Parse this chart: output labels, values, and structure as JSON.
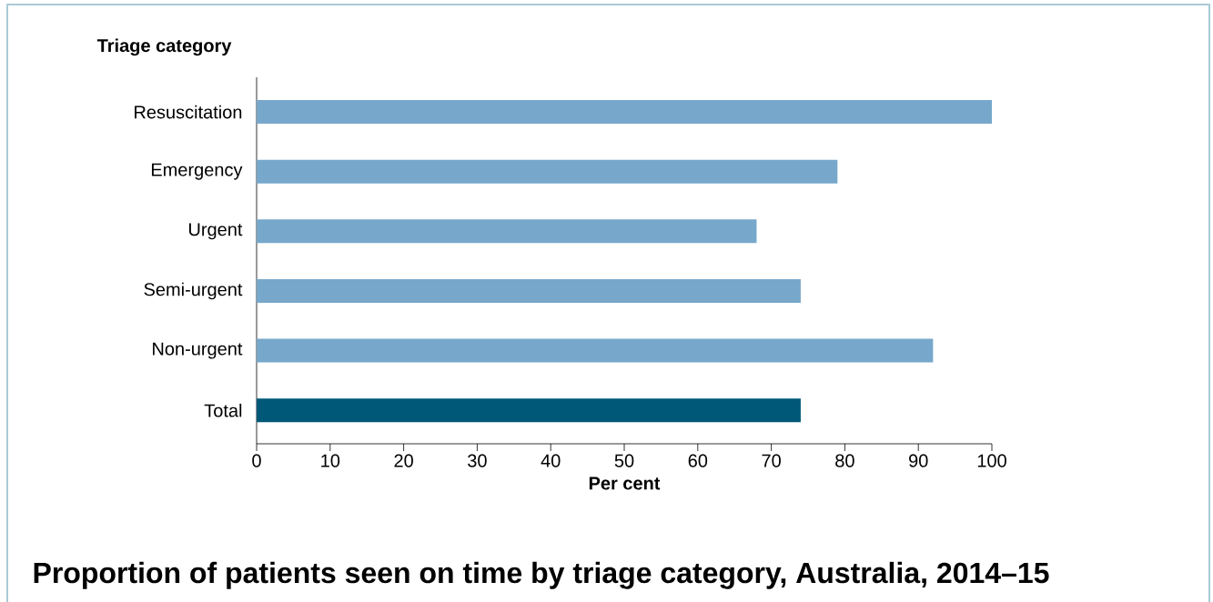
{
  "chart_data": {
    "type": "bar",
    "orientation": "horizontal",
    "title": "Proportion of patients seen on time by triage category, Australia, 2014–15",
    "xlabel": "Per cent",
    "ylabel": "Triage category",
    "categories": [
      "Resuscitation",
      "Emergency",
      "Urgent",
      "Semi-urgent",
      "Non-urgent",
      "Total"
    ],
    "values": [
      100,
      79,
      68,
      74,
      92,
      74
    ],
    "colors": [
      "#77a8cb",
      "#77a8cb",
      "#77a8cb",
      "#77a8cb",
      "#77a8cb",
      "#005878"
    ],
    "xlim": [
      0,
      100
    ],
    "xticks": [
      0,
      10,
      20,
      30,
      40,
      50,
      60,
      70,
      80,
      90,
      100
    ],
    "grid": false
  }
}
